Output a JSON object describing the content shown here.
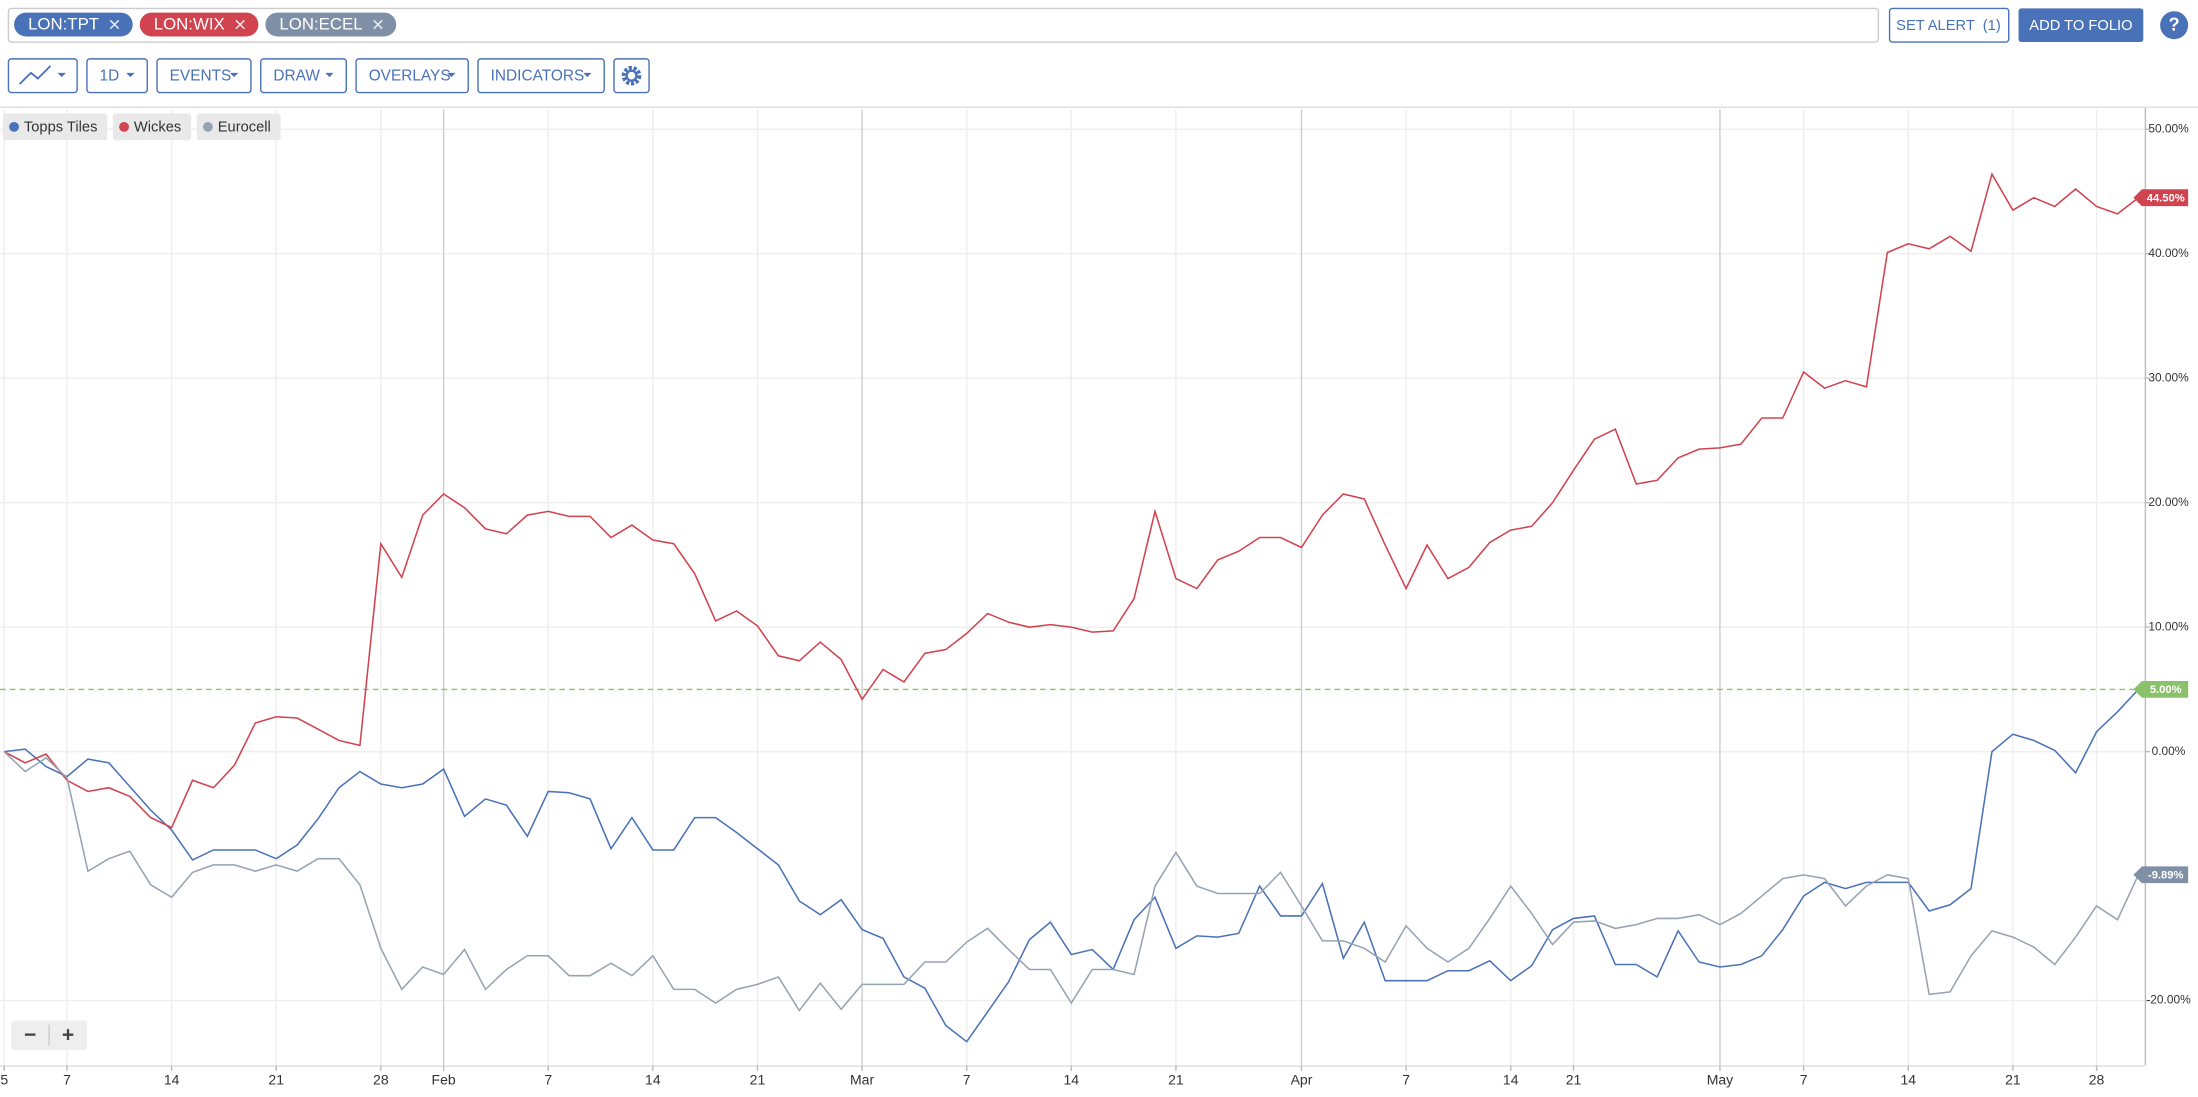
{
  "ui": {
    "tickers": [
      {
        "label": "LON:TPT",
        "color": "#4a72b8"
      },
      {
        "label": "LON:WIX",
        "color": "#d0434f"
      },
      {
        "label": "LON:ECEL",
        "color": "#7f8fa6"
      }
    ],
    "set_alert": "SET ALERT  (1)",
    "add_to_folio": "ADD TO FOLIO",
    "help": "?",
    "toolbar": [
      "1D",
      "EVENTS",
      "DRAW",
      "OVERLAYS",
      "INDICATORS"
    ],
    "zoom": [
      "−",
      "+"
    ]
  },
  "chart_data": {
    "type": "line",
    "xlim": [
      -0.2,
      102.3
    ],
    "ylim": [
      -25.2,
      51.6
    ],
    "xticks": [
      {
        "value": 0,
        "label": "5"
      },
      {
        "value": 3,
        "label": "7"
      },
      {
        "value": 8,
        "label": "14"
      },
      {
        "value": 13,
        "label": "21"
      },
      {
        "value": 18,
        "label": "28"
      },
      {
        "value": 21,
        "label": "Feb"
      },
      {
        "value": 26,
        "label": "7"
      },
      {
        "value": 31,
        "label": "14"
      },
      {
        "value": 36,
        "label": "21"
      },
      {
        "value": 41,
        "label": "Mar"
      },
      {
        "value": 46,
        "label": "7"
      },
      {
        "value": 51,
        "label": "14"
      },
      {
        "value": 56,
        "label": "21"
      },
      {
        "value": 62,
        "label": "Apr"
      },
      {
        "value": 67,
        "label": "7"
      },
      {
        "value": 72,
        "label": "14"
      },
      {
        "value": 75,
        "label": "21"
      },
      {
        "value": 82,
        "label": "May"
      },
      {
        "value": 86,
        "label": "7"
      },
      {
        "value": 91,
        "label": "14"
      },
      {
        "value": 96,
        "label": "21"
      },
      {
        "value": 100,
        "label": "28"
      }
    ],
    "yticks": [
      {
        "value": -20,
        "label": "-20.00%"
      },
      {
        "value": 0,
        "label": "0.00%"
      },
      {
        "value": 10,
        "label": "10.00%"
      },
      {
        "value": 20,
        "label": "20.00%"
      },
      {
        "value": 30,
        "label": "30.00%"
      },
      {
        "value": 40,
        "label": "40.00%"
      },
      {
        "value": 50,
        "label": "50.00%"
      }
    ],
    "grid": true,
    "reference_line": {
      "value": 5,
      "color": "#8cc16b"
    },
    "series": [
      {
        "name": "Topps Tiles",
        "color": "#4a72b8",
        "tag_color": "#8cc16b",
        "last_label": "5.00%",
        "values": [
          0,
          0.2,
          -1.2,
          -2.0,
          -0.6,
          -0.9,
          -2.8,
          -4.7,
          -6.3,
          -8.7,
          -7.9,
          -7.9,
          -7.9,
          -8.6,
          -7.5,
          -5.4,
          -2.9,
          -1.6,
          -2.6,
          -2.9,
          -2.6,
          -1.4,
          -5.2,
          -3.8,
          -4.3,
          -6.8,
          -3.2,
          -3.3,
          -3.8,
          -7.8,
          -5.3,
          -7.9,
          -7.9,
          -5.3,
          -5.3,
          -6.5,
          -7.8,
          -9.1,
          -12.0,
          -13.1,
          -11.9,
          -14.3,
          -15.0,
          -18.1,
          -19.0,
          -22.0,
          -23.3,
          -20.9,
          -18.5,
          -15.1,
          -13.7,
          -16.3,
          -15.9,
          -17.5,
          -13.5,
          -11.7,
          -15.8,
          -14.8,
          -14.9,
          -14.6,
          -10.8,
          -13.2,
          -13.2,
          -10.6,
          -16.6,
          -13.7,
          -18.4,
          -18.4,
          -18.4,
          -17.6,
          -17.6,
          -16.8,
          -18.4,
          -17.2,
          -14.3,
          -13.4,
          -13.2,
          -17.1,
          -17.1,
          -18.1,
          -14.4,
          -16.9,
          -17.3,
          -17.1,
          -16.4,
          -14.3,
          -11.6,
          -10.5,
          -11.0,
          -10.5,
          -10.5,
          -10.5,
          -12.8,
          -12.3,
          -11.0,
          0.0,
          1.4,
          0.9,
          0.1,
          -1.7,
          1.6,
          3.2,
          5.0
        ]
      },
      {
        "name": "Wickes",
        "color": "#d0434f",
        "tag_color": "#d0434f",
        "last_label": "44.50%",
        "values": [
          0,
          -0.9,
          -0.2,
          -2.3,
          -3.2,
          -2.9,
          -3.6,
          -5.3,
          -6.1,
          -2.3,
          -2.9,
          -1.1,
          2.3,
          2.8,
          2.7,
          1.8,
          0.9,
          0.5,
          16.7,
          14.0,
          19.0,
          20.7,
          19.6,
          17.9,
          17.5,
          19.0,
          19.3,
          18.9,
          18.9,
          17.2,
          18.2,
          17.0,
          16.7,
          14.3,
          10.5,
          11.3,
          10.1,
          7.7,
          7.3,
          8.8,
          7.4,
          4.2,
          6.6,
          5.6,
          7.9,
          8.2,
          9.5,
          11.1,
          10.4,
          10.0,
          10.2,
          10.0,
          9.6,
          9.7,
          12.3,
          19.3,
          13.9,
          13.1,
          15.4,
          16.1,
          17.2,
          17.2,
          16.4,
          19.0,
          20.7,
          20.3,
          16.6,
          13.1,
          16.6,
          13.9,
          14.8,
          16.8,
          17.8,
          18.1,
          20.0,
          22.6,
          25.1,
          25.9,
          21.5,
          21.8,
          23.6,
          24.3,
          24.4,
          24.7,
          26.8,
          26.8,
          30.5,
          29.2,
          29.8,
          29.3,
          40.1,
          40.8,
          40.4,
          41.4,
          40.2,
          46.4,
          43.5,
          44.5,
          43.8,
          45.2,
          43.8,
          43.2,
          44.5
        ]
      },
      {
        "name": "Eurocell",
        "color": "#96a3b3",
        "tag_color": "#7f8fa6",
        "last_label": "-9.89%",
        "values": [
          0,
          -1.6,
          -0.5,
          -2.1,
          -9.6,
          -8.6,
          -8.0,
          -10.7,
          -11.7,
          -9.7,
          -9.1,
          -9.1,
          -9.6,
          -9.1,
          -9.6,
          -8.6,
          -8.6,
          -10.7,
          -15.8,
          -19.1,
          -17.3,
          -17.9,
          -15.9,
          -19.1,
          -17.5,
          -16.4,
          -16.4,
          -18.0,
          -18.0,
          -17.0,
          -18.0,
          -16.4,
          -19.1,
          -19.1,
          -20.2,
          -19.1,
          -18.7,
          -18.1,
          -20.8,
          -18.6,
          -20.7,
          -18.7,
          -18.7,
          -18.7,
          -16.9,
          -16.9,
          -15.3,
          -14.2,
          -15.9,
          -17.5,
          -17.5,
          -20.2,
          -17.5,
          -17.5,
          -17.9,
          -10.8,
          -8.1,
          -10.8,
          -11.4,
          -11.4,
          -11.4,
          -9.7,
          -12.4,
          -15.2,
          -15.2,
          -15.8,
          -16.9,
          -14.0,
          -15.8,
          -16.9,
          -15.8,
          -13.4,
          -10.8,
          -13.0,
          -15.5,
          -13.7,
          -13.6,
          -14.2,
          -13.9,
          -13.4,
          -13.4,
          -13.1,
          -13.9,
          -13.0,
          -11.6,
          -10.2,
          -9.9,
          -10.2,
          -12.4,
          -10.8,
          -9.9,
          -10.2,
          -19.5,
          -19.3,
          -16.4,
          -14.4,
          -14.9,
          -15.7,
          -17.1,
          -14.9,
          -12.4,
          -13.5,
          -9.89
        ]
      }
    ]
  }
}
